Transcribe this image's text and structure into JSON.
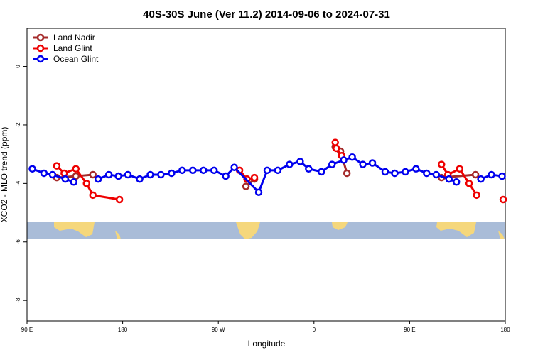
{
  "chart_data": {
    "type": "line",
    "title": "40S-30S June (Ver 11.2)   2014-09-06 to 2024-07-31",
    "x_label": "Longitude",
    "y_label": "XCO2 - MLO trend (ppm)",
    "xlim": [
      90,
      540
    ],
    "xticks": [
      {
        "value": 90,
        "label": "90 E"
      },
      180,
      {
        "value": 270,
        "label": "90 W"
      },
      {
        "value": 360,
        "label": "0"
      },
      {
        "value": 450,
        "label": "90 E"
      },
      {
        "value": 540,
        "label": "180"
      }
    ],
    "ylim": [
      -8.7,
      1.3
    ],
    "yticks": [
      0,
      -2,
      -4,
      -6,
      -8
    ],
    "legend": "top-left",
    "series": [
      {
        "name": "Land Nadir",
        "color": "#a52a2a",
        "x": [
          118,
          136,
          152,
          null,
          296,
          304,
          null,
          380,
          385,
          391,
          null,
          480,
          512
        ],
        "values": [
          -3.8,
          -3.75,
          -3.7,
          null,
          -4.1,
          -3.85,
          null,
          -2.75,
          -2.9,
          -3.65,
          null,
          -3.8,
          -3.7
        ]
      },
      {
        "name": "Land Glint",
        "color": "#ee0000",
        "x": [
          118,
          125,
          136,
          146,
          152,
          177,
          null,
          290,
          297,
          304,
          null,
          380,
          381,
          386,
          null,
          480,
          486,
          497,
          506,
          513,
          null,
          538
        ],
        "values": [
          -3.4,
          -3.65,
          -3.5,
          -4.0,
          -4.4,
          -4.55,
          null,
          -3.55,
          -3.85,
          -3.8,
          null,
          -2.6,
          -2.8,
          -3.05,
          null,
          -3.35,
          -3.7,
          -3.5,
          -4.0,
          -4.4,
          null,
          -4.55
        ]
      },
      {
        "name": "Ocean Glint",
        "color": "#0000ee",
        "x": [
          95,
          106,
          114,
          126,
          134,
          null,
          157,
          167,
          176,
          185,
          196,
          206,
          216,
          226,
          236,
          246,
          256,
          266,
          277,
          285,
          308,
          316,
          326,
          337,
          347,
          355,
          367,
          377,
          388,
          396,
          406,
          415,
          427,
          436,
          446,
          456,
          466,
          475,
          487,
          494,
          null,
          517,
          527,
          537
        ],
        "values": [
          -3.5,
          -3.65,
          -3.7,
          -3.85,
          -3.95,
          null,
          -3.85,
          -3.7,
          -3.75,
          -3.7,
          -3.85,
          -3.7,
          -3.7,
          -3.65,
          -3.55,
          -3.55,
          -3.55,
          -3.55,
          -3.75,
          -3.45,
          -4.3,
          -3.55,
          -3.55,
          -3.35,
          -3.25,
          -3.5,
          -3.6,
          -3.35,
          -3.2,
          -3.1,
          -3.35,
          -3.3,
          -3.6,
          -3.65,
          -3.6,
          -3.5,
          -3.65,
          -3.7,
          -3.85,
          -3.95,
          null,
          -3.85,
          -3.7,
          -3.75
        ]
      }
    ]
  }
}
